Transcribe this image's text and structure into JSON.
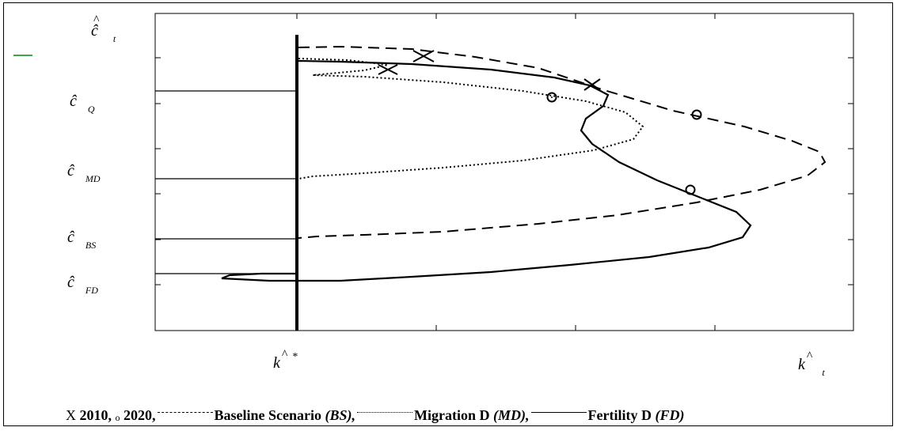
{
  "chart_data": {
    "type": "line",
    "axis_labels": {
      "y_top": "ĉ",
      "y_top_sub": "t",
      "x_star": "k",
      "x_star_sup": "*",
      "x_end": "k",
      "x_end_sub": "t",
      "hat": "^"
    },
    "y_levels": [
      {
        "name": "Q",
        "label": "ĉ",
        "sub": "Q"
      },
      {
        "name": "MD",
        "label": "ĉ",
        "sub": "MD"
      },
      {
        "name": "BS",
        "label": "ĉ",
        "sub": "BS"
      },
      {
        "name": "FD",
        "label": "ĉ",
        "sub": "FD"
      }
    ],
    "series": [
      {
        "name": "Baseline Scenario (BS)",
        "style": "dashed"
      },
      {
        "name": "Migration D (MD)",
        "style": "dotted"
      },
      {
        "name": "Fertility D (FD)",
        "style": "solid"
      }
    ],
    "markers": [
      {
        "symbol": "X",
        "label": "2010"
      },
      {
        "symbol": "o",
        "label": "2020"
      }
    ],
    "grid": false,
    "legend_position": "bottom"
  },
  "legend": {
    "x_symbol": "X",
    "x_year": "2010,",
    "o_symbol": "o",
    "o_year": "2020,",
    "bs_name": "Baseline Scenario",
    "bs_abbr": "(BS),",
    "md_name": "Migration D",
    "md_abbr": "(MD),",
    "fd_name": "Fertility D",
    "fd_abbr": "(FD)"
  }
}
